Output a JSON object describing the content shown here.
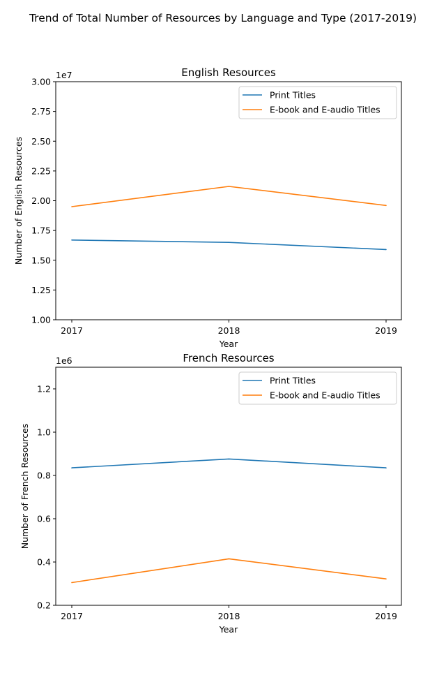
{
  "figure_title": "Trend of Total Number of Resources by Language and Type (2017-2019)",
  "chart_data": [
    {
      "type": "line",
      "title": "English Resources",
      "xlabel": "Year",
      "ylabel": "Number of English Resources",
      "offset_label": "1e7",
      "x": [
        2017,
        2018,
        2019
      ],
      "x_tick_labels": [
        "2017",
        "2018",
        "2019"
      ],
      "ylim": [
        10000000,
        30000000
      ],
      "y_ticks": [
        10000000,
        12500000,
        15000000,
        17500000,
        20000000,
        22500000,
        25000000,
        27500000,
        30000000
      ],
      "y_tick_labels": [
        "1.00",
        "1.25",
        "1.50",
        "1.75",
        "2.00",
        "2.25",
        "2.50",
        "2.75",
        "3.00"
      ],
      "legend_position": "upper right",
      "grid": false,
      "series": [
        {
          "name": "Print Titles",
          "color": "#1f77b4",
          "values": [
            16700000,
            16500000,
            15900000
          ]
        },
        {
          "name": "E-book and E-audio Titles",
          "color": "#ff7f0e",
          "values": [
            19500000,
            21200000,
            19600000
          ]
        }
      ]
    },
    {
      "type": "line",
      "title": "French Resources",
      "xlabel": "Year",
      "ylabel": "Number of French Resources",
      "offset_label": "1e6",
      "x": [
        2017,
        2018,
        2019
      ],
      "x_tick_labels": [
        "2017",
        "2018",
        "2019"
      ],
      "ylim": [
        200000,
        1300000
      ],
      "y_ticks": [
        200000,
        400000,
        600000,
        800000,
        1000000,
        1200000
      ],
      "y_tick_labels": [
        "0.2",
        "0.4",
        "0.6",
        "0.8",
        "1.0",
        "1.2"
      ],
      "legend_position": "upper right",
      "grid": false,
      "series": [
        {
          "name": "Print Titles",
          "color": "#1f77b4",
          "values": [
            835000,
            876000,
            835000
          ]
        },
        {
          "name": "E-book and E-audio Titles",
          "color": "#ff7f0e",
          "values": [
            305000,
            415000,
            322000
          ]
        }
      ]
    }
  ]
}
